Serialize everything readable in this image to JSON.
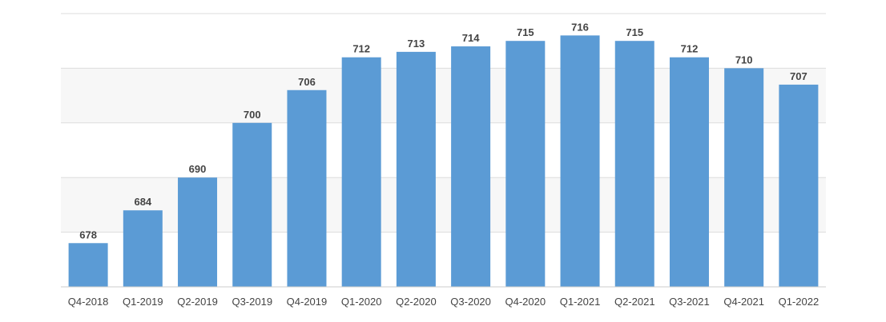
{
  "chart_data": {
    "type": "bar",
    "categories": [
      "Q4-2018",
      "Q1-2019",
      "Q2-2019",
      "Q3-2019",
      "Q4-2019",
      "Q1-2020",
      "Q2-2020",
      "Q3-2020",
      "Q4-2020",
      "Q1-2021",
      "Q2-2021",
      "Q3-2021",
      "Q4-2021",
      "Q1-2022"
    ],
    "values": [
      678,
      684,
      690,
      700,
      706,
      712,
      713,
      714,
      715,
      716,
      715,
      712,
      710,
      707
    ],
    "title": "",
    "xlabel": "",
    "ylabel": "",
    "ylim": [
      670,
      720
    ],
    "grid": true,
    "legend": "none",
    "bar_color": "#5b9bd5",
    "band_color": "#f7f7f7",
    "grid_color": "#dddddd"
  }
}
